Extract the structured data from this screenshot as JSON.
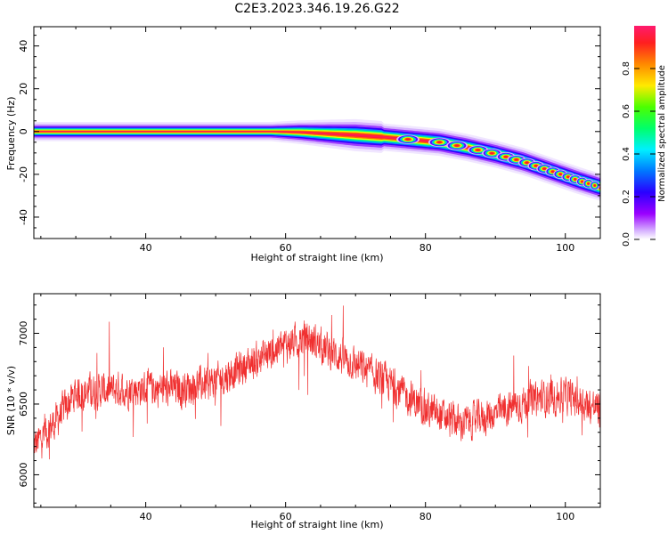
{
  "title": "C2E3.2023.346.19.26.G22",
  "chart_data": [
    {
      "type": "heatmap",
      "xlabel": "Height of straight line (km)",
      "ylabel": "Frequency (Hz)",
      "xlim": [
        24,
        105
      ],
      "ylim": [
        -50,
        49
      ],
      "xticks": [
        40,
        60,
        80,
        100
      ],
      "yticks": [
        -40,
        -20,
        0,
        20,
        40
      ],
      "grid": false,
      "colorbar": {
        "label": "Normalized spectral amplitude",
        "range": [
          0,
          1
        ],
        "ticks": [
          "0.0",
          "0.2",
          "0.4",
          "0.6",
          "0.8"
        ],
        "colormap": "gist_rainbow_r"
      },
      "ridge": {
        "x": [
          24,
          30,
          40,
          50,
          58,
          62,
          66,
          70,
          74,
          78,
          82,
          86,
          90,
          94,
          98,
          102,
          105
        ],
        "y": [
          0,
          0,
          0,
          0,
          0,
          -0.3,
          -1,
          -1.7,
          -2.6,
          -3.8,
          -5,
          -7.5,
          -10.5,
          -14,
          -18.5,
          -23,
          -26
        ]
      },
      "peaks_x": [
        77.5,
        82,
        84.5,
        87.5,
        89.5,
        91.5,
        93,
        94.5,
        95.8,
        97,
        98.2,
        99.3,
        100.4,
        101.4,
        102.4,
        103.3,
        104.2
      ]
    },
    {
      "type": "line",
      "xlabel": "Height of straight line (km)",
      "ylabel": "SNR (10 * v/v)",
      "xlim": [
        24,
        105
      ],
      "ylim": [
        5770,
        7280
      ],
      "xticks": [
        40,
        60,
        80,
        100
      ],
      "yticks": [
        6000,
        6500,
        7000
      ],
      "grid": false,
      "color": "#f03030",
      "trend": {
        "x": [
          24,
          27,
          30,
          35,
          40,
          45,
          50,
          55,
          60,
          63,
          66,
          70,
          75,
          80,
          85,
          90,
          95,
          100,
          105
        ],
        "y": [
          6200,
          6370,
          6580,
          6600,
          6610,
          6610,
          6660,
          6790,
          6920,
          6970,
          6880,
          6780,
          6640,
          6460,
          6360,
          6430,
          6530,
          6560,
          6460
        ]
      },
      "noise_amplitude": 110,
      "samples": 2200
    }
  ]
}
